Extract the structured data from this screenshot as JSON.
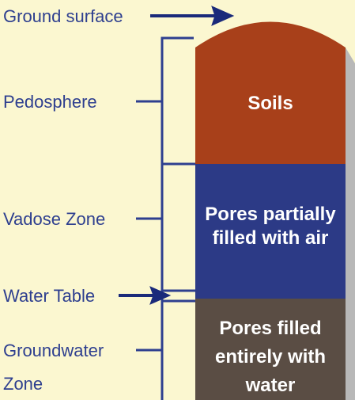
{
  "labels": {
    "ground_surface": "Ground surface",
    "pedosphere": "Pedosphere",
    "vadose_zone": "Vadose Zone",
    "water_table": "Water Table",
    "groundwater_zone": [
      "Groundwater",
      "Zone"
    ]
  },
  "layers": {
    "soils": "Soils",
    "vadose": [
      "Pores partially",
      "filled with air"
    ],
    "groundwater": [
      "Pores filled",
      "entirely with",
      "water"
    ]
  }
}
